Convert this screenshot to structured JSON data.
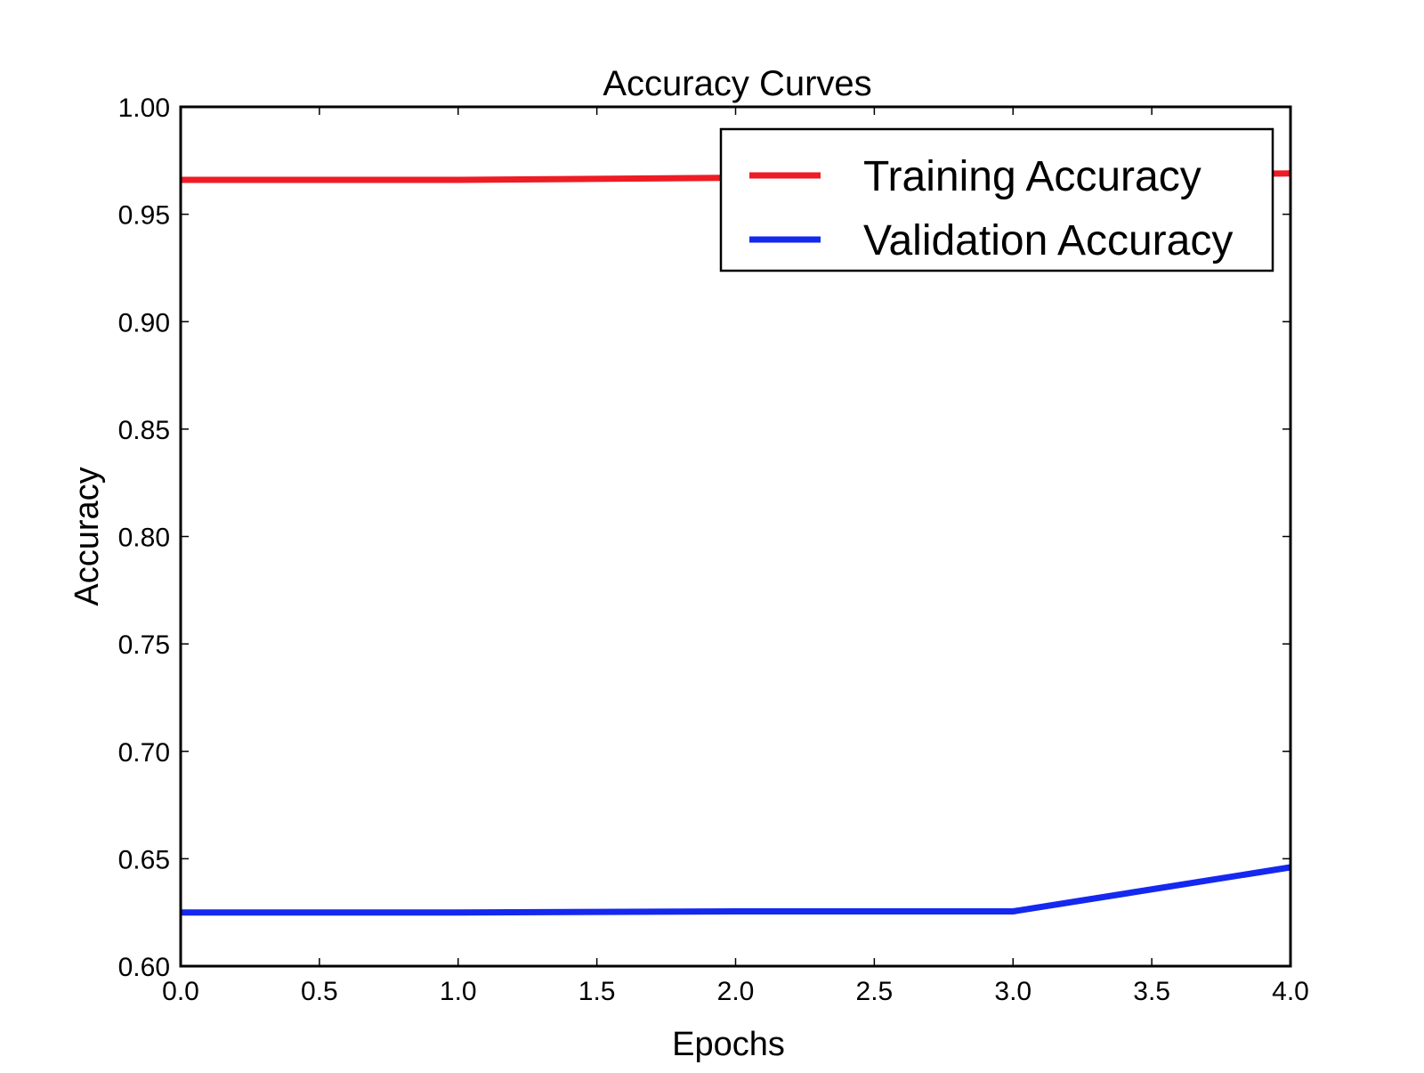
{
  "chart_data": {
    "type": "line",
    "title": "Accuracy Curves",
    "xlabel": "Epochs",
    "ylabel": "Accuracy",
    "xlim": [
      0.0,
      4.0
    ],
    "ylim": [
      0.6,
      1.0
    ],
    "xticks": [
      "0.0",
      "0.5",
      "1.0",
      "1.5",
      "2.0",
      "2.5",
      "3.0",
      "3.5",
      "4.0"
    ],
    "yticks": [
      "0.60",
      "0.65",
      "0.70",
      "0.75",
      "0.80",
      "0.85",
      "0.90",
      "0.95",
      "1.00"
    ],
    "grid": false,
    "legend_position": "top-right",
    "series": [
      {
        "name": "Training Accuracy",
        "color": "#ee1c25",
        "x": [
          0,
          1,
          2,
          3,
          4
        ],
        "y": [
          0.966,
          0.966,
          0.967,
          0.968,
          0.969
        ]
      },
      {
        "name": "Validation Accuracy",
        "color": "#1428f0",
        "x": [
          0,
          1,
          2,
          3,
          4
        ],
        "y": [
          0.625,
          0.625,
          0.6255,
          0.6255,
          0.646
        ]
      }
    ]
  }
}
